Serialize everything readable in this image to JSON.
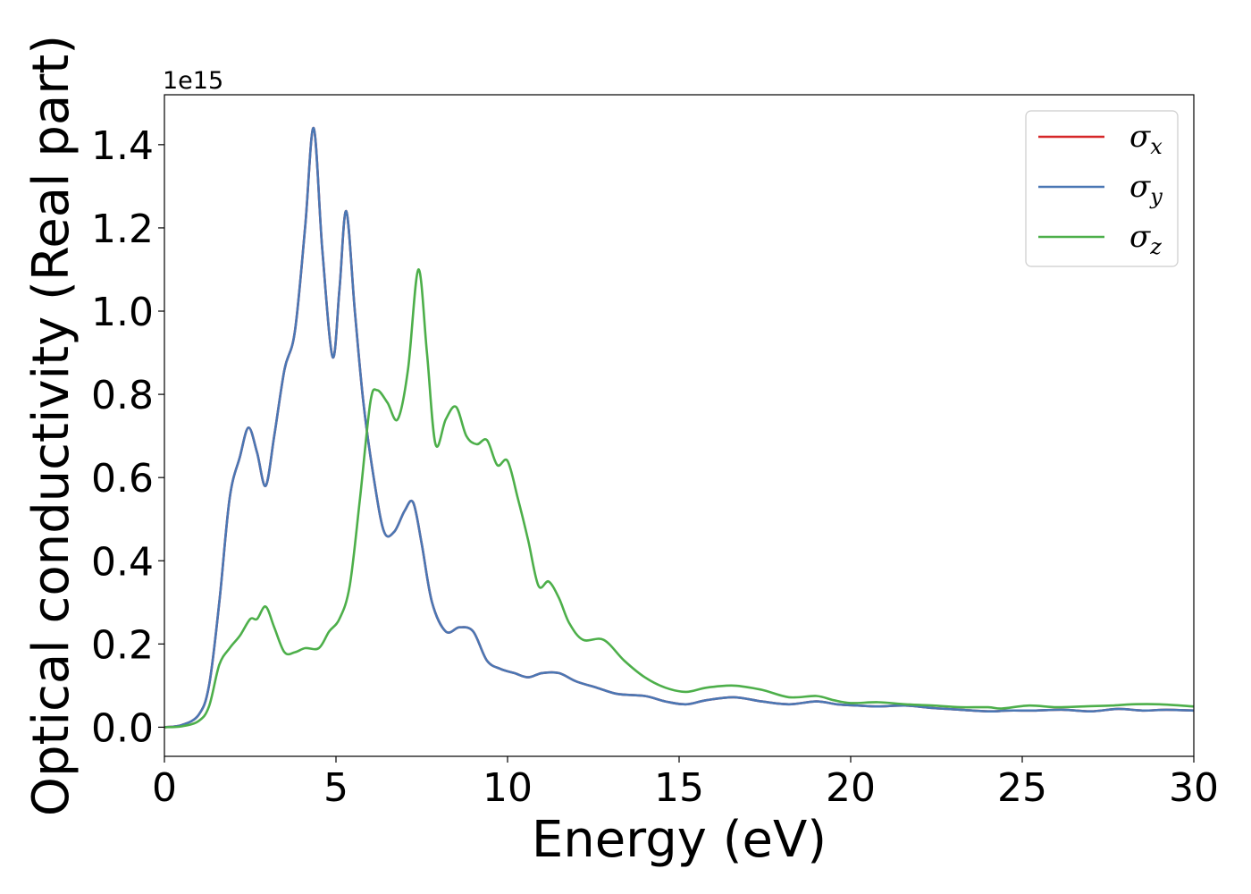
{
  "chart_data": {
    "type": "line",
    "xlabel": "Energy (eV)",
    "ylabel": "Optical conductivity (Real part)",
    "y_offset_text": "1e15",
    "xlim": [
      0,
      30
    ],
    "ylim": [
      -0.07,
      1.52
    ],
    "x_ticks": [
      0,
      5,
      10,
      15,
      20,
      25,
      30
    ],
    "x_tick_labels": [
      "0",
      "5",
      "10",
      "15",
      "20",
      "25",
      "30"
    ],
    "y_ticks": [
      0.0,
      0.2,
      0.4,
      0.6,
      0.8,
      1.0,
      1.2,
      1.4
    ],
    "y_tick_labels": [
      "0.0",
      "0.2",
      "0.4",
      "0.6",
      "0.8",
      "1.0",
      "1.2",
      "1.4"
    ],
    "grid": false,
    "legend_position": "top-right",
    "series": [
      {
        "name": "σx",
        "symbol": "σ",
        "subscript": "x",
        "color": "#d62728",
        "x": [
          0,
          0.5,
          1.0,
          1.3,
          1.6,
          1.9,
          2.2,
          2.45,
          2.7,
          2.95,
          3.2,
          3.5,
          3.8,
          4.1,
          4.35,
          4.6,
          4.9,
          5.1,
          5.3,
          5.55,
          5.8,
          6.1,
          6.4,
          6.7,
          7.0,
          7.25,
          7.5,
          7.8,
          8.2,
          8.6,
          9.0,
          9.4,
          9.8,
          10.2,
          10.6,
          11.0,
          11.5,
          12.0,
          12.6,
          13.2,
          14.0,
          14.6,
          15.2,
          15.8,
          16.6,
          17.4,
          18.2,
          19.0,
          19.6,
          20.2,
          20.8,
          21.6,
          22.4,
          23.2,
          24.0,
          24.6,
          25.4,
          26.2,
          27.0,
          27.8,
          28.5,
          29.2,
          30.0
        ],
        "y": [
          0.0,
          0.005,
          0.03,
          0.1,
          0.3,
          0.55,
          0.65,
          0.72,
          0.66,
          0.58,
          0.7,
          0.86,
          0.95,
          1.2,
          1.44,
          1.15,
          0.89,
          1.05,
          1.24,
          1.0,
          0.78,
          0.6,
          0.47,
          0.47,
          0.52,
          0.54,
          0.44,
          0.3,
          0.23,
          0.24,
          0.23,
          0.16,
          0.14,
          0.13,
          0.12,
          0.13,
          0.13,
          0.11,
          0.095,
          0.08,
          0.075,
          0.062,
          0.055,
          0.065,
          0.072,
          0.062,
          0.055,
          0.062,
          0.055,
          0.052,
          0.05,
          0.052,
          0.046,
          0.042,
          0.038,
          0.04,
          0.04,
          0.042,
          0.038,
          0.044,
          0.04,
          0.042,
          0.04
        ]
      },
      {
        "name": "σy",
        "symbol": "σ",
        "subscript": "y",
        "color": "#4a77b4",
        "x": [
          0,
          0.5,
          1.0,
          1.3,
          1.6,
          1.9,
          2.2,
          2.45,
          2.7,
          2.95,
          3.2,
          3.5,
          3.8,
          4.1,
          4.35,
          4.6,
          4.9,
          5.1,
          5.3,
          5.55,
          5.8,
          6.1,
          6.4,
          6.7,
          7.0,
          7.25,
          7.5,
          7.8,
          8.2,
          8.6,
          9.0,
          9.4,
          9.8,
          10.2,
          10.6,
          11.0,
          11.5,
          12.0,
          12.6,
          13.2,
          14.0,
          14.6,
          15.2,
          15.8,
          16.6,
          17.4,
          18.2,
          19.0,
          19.6,
          20.2,
          20.8,
          21.6,
          22.4,
          23.2,
          24.0,
          24.6,
          25.4,
          26.2,
          27.0,
          27.8,
          28.5,
          29.2,
          30.0
        ],
        "y": [
          0.0,
          0.005,
          0.03,
          0.1,
          0.3,
          0.55,
          0.65,
          0.72,
          0.66,
          0.58,
          0.7,
          0.86,
          0.95,
          1.2,
          1.44,
          1.15,
          0.89,
          1.05,
          1.24,
          1.0,
          0.78,
          0.6,
          0.47,
          0.47,
          0.52,
          0.54,
          0.44,
          0.3,
          0.23,
          0.24,
          0.23,
          0.16,
          0.14,
          0.13,
          0.12,
          0.13,
          0.13,
          0.11,
          0.095,
          0.08,
          0.075,
          0.062,
          0.055,
          0.065,
          0.072,
          0.062,
          0.055,
          0.062,
          0.055,
          0.052,
          0.05,
          0.052,
          0.046,
          0.042,
          0.038,
          0.04,
          0.04,
          0.042,
          0.038,
          0.044,
          0.04,
          0.042,
          0.04
        ]
      },
      {
        "name": "σz",
        "symbol": "σ",
        "subscript": "z",
        "color": "#4daf4a",
        "x": [
          0,
          0.5,
          1.0,
          1.3,
          1.6,
          1.9,
          2.2,
          2.5,
          2.7,
          2.95,
          3.2,
          3.5,
          3.8,
          4.1,
          4.5,
          4.8,
          5.1,
          5.4,
          5.7,
          6.0,
          6.2,
          6.5,
          6.8,
          7.1,
          7.4,
          7.65,
          7.9,
          8.2,
          8.5,
          8.8,
          9.1,
          9.4,
          9.7,
          10.0,
          10.3,
          10.6,
          10.9,
          11.2,
          11.5,
          11.8,
          12.2,
          12.8,
          13.4,
          14.0,
          14.6,
          15.2,
          15.8,
          16.6,
          17.4,
          18.2,
          19.0,
          19.5,
          20.0,
          20.8,
          21.6,
          22.4,
          23.2,
          24.0,
          24.4,
          25.2,
          26.0,
          26.8,
          27.6,
          28.2,
          29.0,
          30.0
        ],
        "y": [
          0.0,
          0.002,
          0.015,
          0.05,
          0.15,
          0.19,
          0.22,
          0.26,
          0.26,
          0.29,
          0.24,
          0.18,
          0.18,
          0.19,
          0.19,
          0.23,
          0.26,
          0.34,
          0.55,
          0.78,
          0.81,
          0.78,
          0.74,
          0.86,
          1.1,
          0.9,
          0.68,
          0.74,
          0.77,
          0.7,
          0.68,
          0.69,
          0.63,
          0.64,
          0.55,
          0.45,
          0.34,
          0.35,
          0.31,
          0.25,
          0.21,
          0.21,
          0.16,
          0.12,
          0.095,
          0.085,
          0.095,
          0.1,
          0.09,
          0.072,
          0.075,
          0.065,
          0.058,
          0.06,
          0.055,
          0.052,
          0.048,
          0.048,
          0.045,
          0.052,
          0.048,
          0.05,
          0.052,
          0.055,
          0.055,
          0.05
        ]
      }
    ]
  }
}
